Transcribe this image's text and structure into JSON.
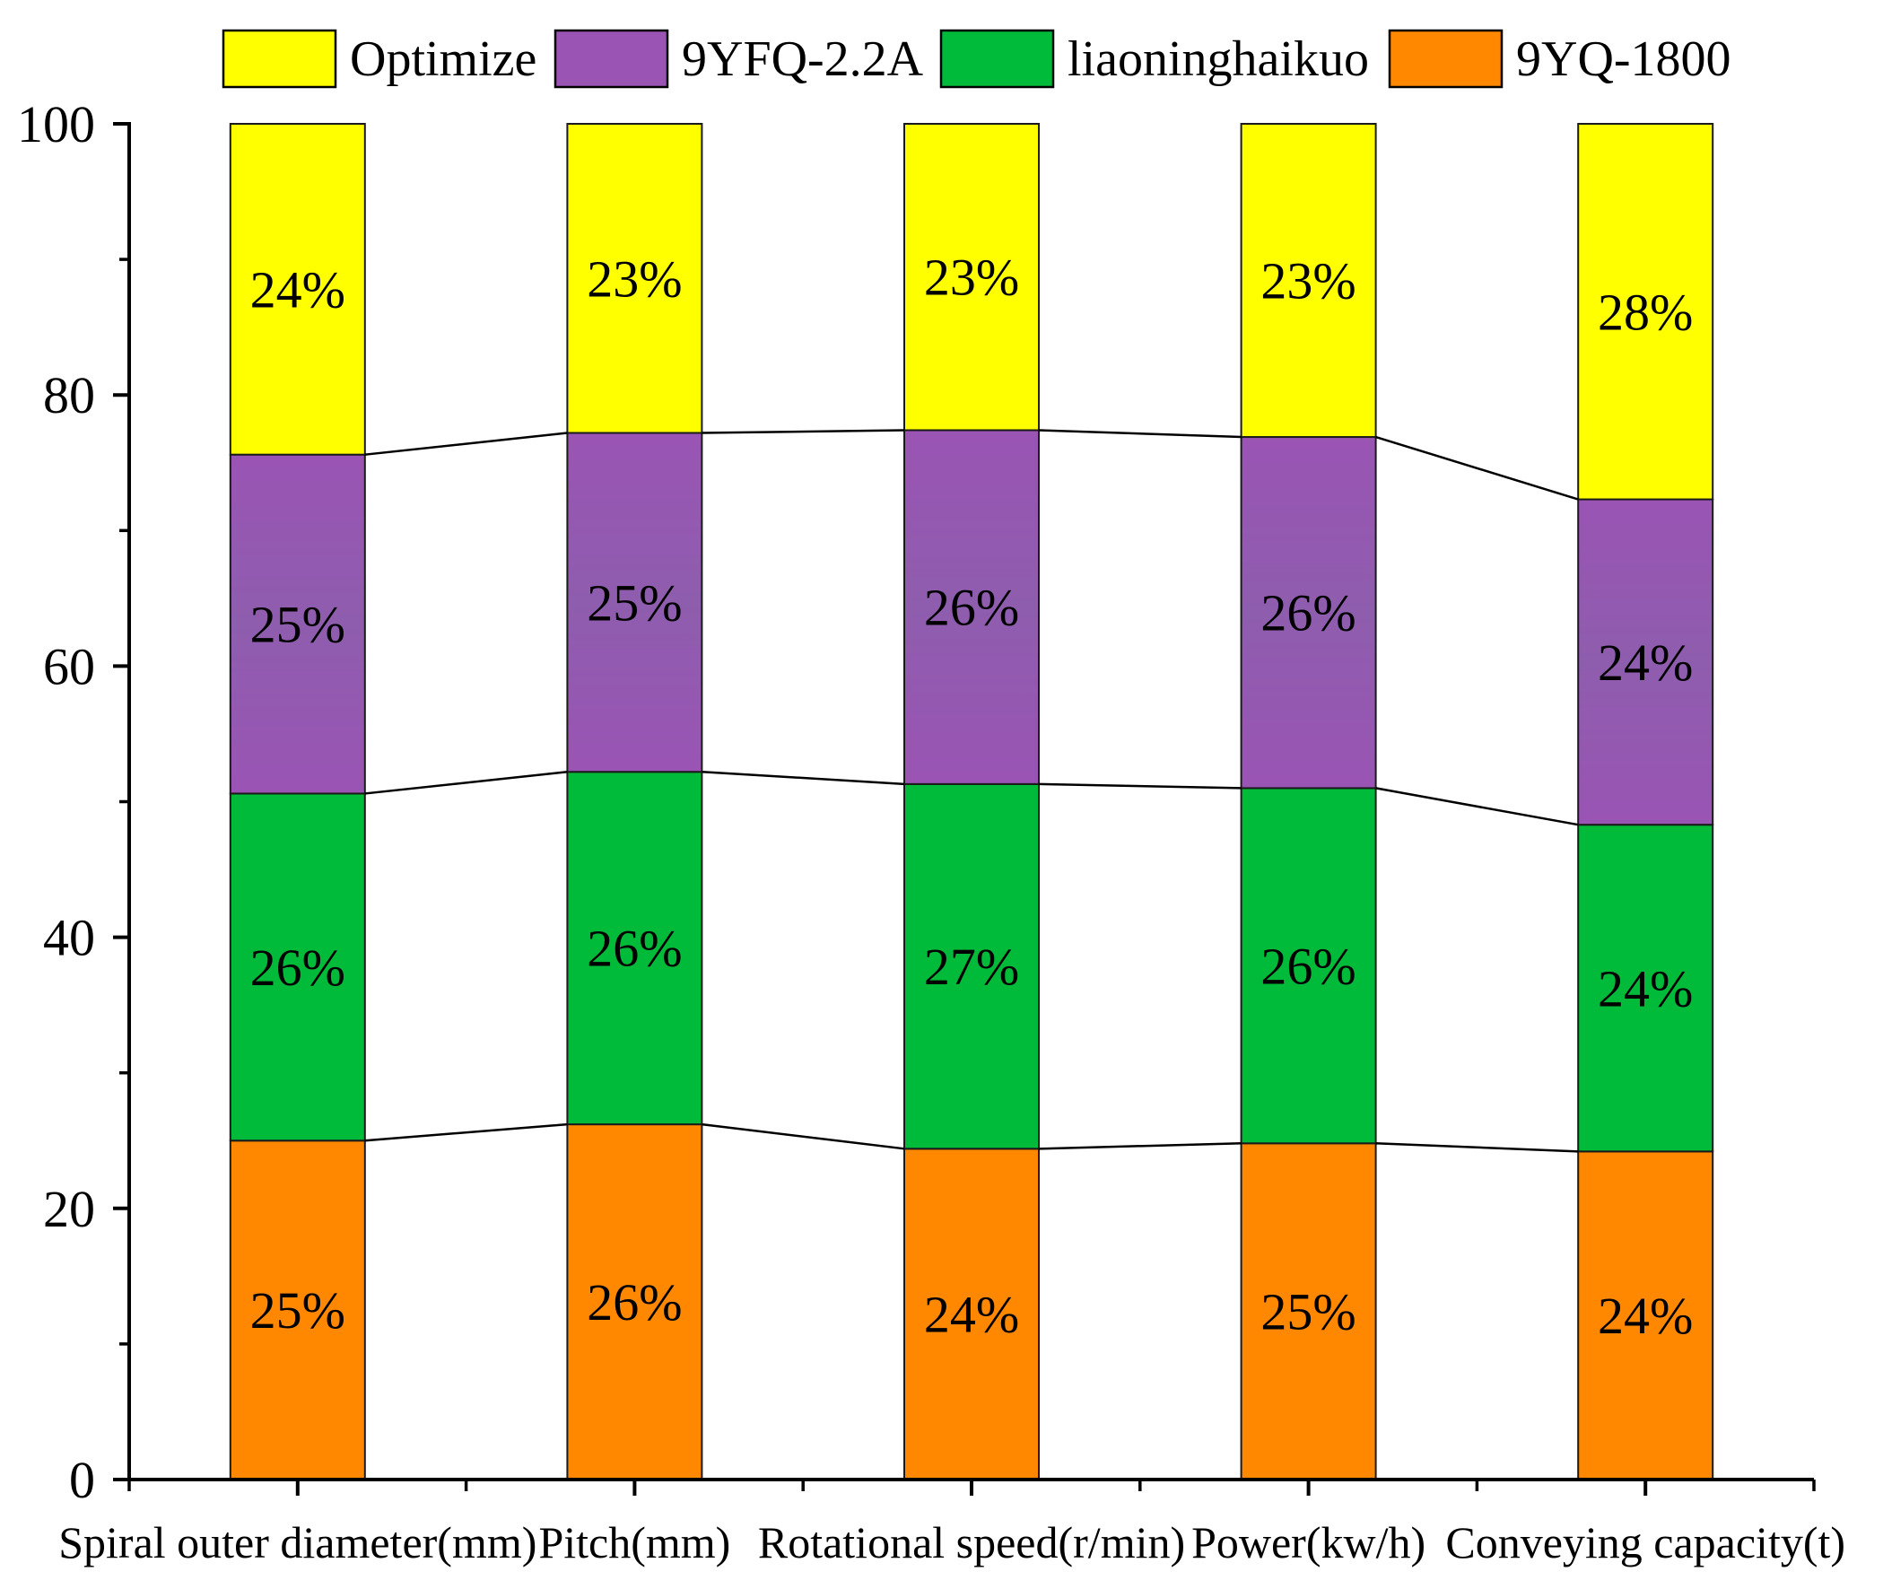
{
  "chart_data": {
    "type": "bar",
    "stacked": true,
    "categories": [
      "Spiral outer diameter(mm)",
      "Pitch(mm)",
      "Rotational speed(r/min)",
      "Power(kw/h)",
      "Conveying capacity(t)"
    ],
    "series": [
      {
        "name": "9YQ-1800",
        "color": "#FF8800",
        "values": [
          25.0,
          26.2,
          24.4,
          24.8,
          24.2
        ],
        "labels": [
          "25%",
          "26%",
          "24%",
          "25%",
          "24%"
        ]
      },
      {
        "name": "liaoninghaikuo",
        "color": "#00BA39",
        "values": [
          25.6,
          26.0,
          26.9,
          26.2,
          24.1
        ],
        "labels": [
          "26%",
          "26%",
          "27%",
          "26%",
          "24%"
        ]
      },
      {
        "name": "9YFQ-2.2A",
        "color": "#9A54B4",
        "color_mid": "#8E5DAE",
        "values": [
          25.0,
          25.0,
          26.1,
          25.9,
          24.0
        ],
        "labels": [
          "25%",
          "25%",
          "26%",
          "26%",
          "24%"
        ]
      },
      {
        "name": "Optimize",
        "color": "#FFFF00",
        "values": [
          24.4,
          22.8,
          22.6,
          23.1,
          27.7
        ],
        "labels": [
          "24%",
          "23%",
          "23%",
          "23%",
          "28%"
        ]
      }
    ],
    "legend_order": [
      3,
      2,
      1,
      0
    ],
    "legend_position": "top",
    "ylim": [
      0,
      100
    ],
    "yticks": [
      0,
      20,
      40,
      60,
      80,
      100
    ],
    "ytick_labels": [
      "0",
      "20",
      "40",
      "60",
      "80",
      "100"
    ],
    "yminor_ticks": [
      10,
      30,
      50,
      70,
      90
    ],
    "connector_lines": true
  }
}
